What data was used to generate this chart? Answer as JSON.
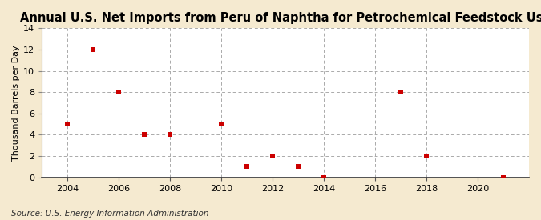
{
  "title": "Annual U.S. Net Imports from Peru of Naphtha for Petrochemical Feedstock Use",
  "ylabel": "Thousand Barrels per Day",
  "source": "Source: U.S. Energy Information Administration",
  "outer_bg_color": "#f5ead0",
  "plot_bg_color": "#ffffff",
  "data_points": {
    "2004": 5,
    "2005": 12,
    "2006": 8,
    "2007": 4,
    "2008": 4,
    "2010": 5,
    "2011": 1,
    "2012": 2,
    "2013": 1,
    "2014": 0,
    "2017": 8,
    "2018": 2,
    "2021": 0
  },
  "xlim": [
    2003.0,
    2022.0
  ],
  "ylim": [
    0,
    14
  ],
  "xticks": [
    2004,
    2006,
    2008,
    2010,
    2012,
    2014,
    2016,
    2018,
    2020
  ],
  "yticks": [
    0,
    2,
    4,
    6,
    8,
    10,
    12,
    14
  ],
  "marker_color": "#cc0000",
  "marker_style": "s",
  "marker_size": 4,
  "grid_color": "#aaaaaa",
  "grid_style": "--",
  "title_fontsize": 10.5,
  "label_fontsize": 8,
  "tick_fontsize": 8,
  "source_fontsize": 7.5
}
